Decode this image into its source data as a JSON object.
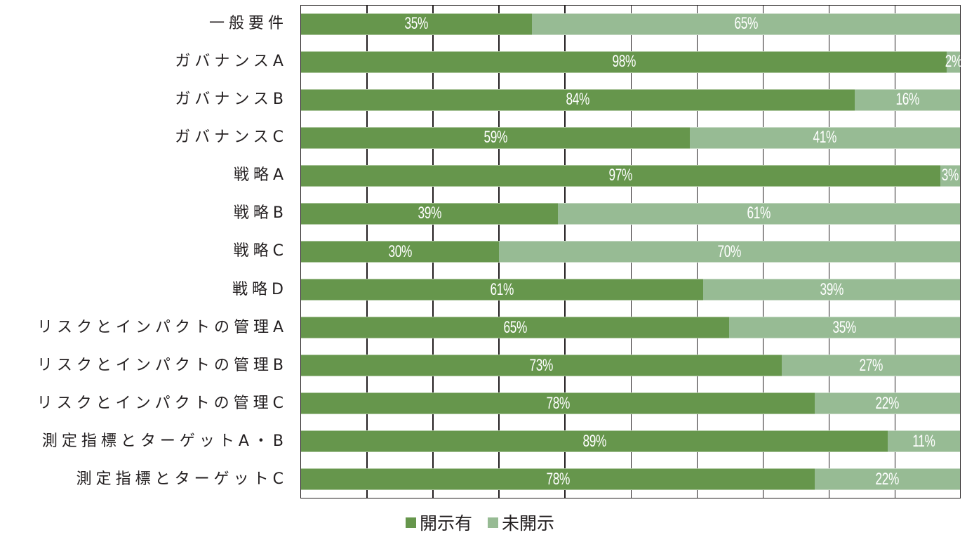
{
  "chart_data": {
    "type": "bar",
    "orientation": "horizontal",
    "stacked": "percent",
    "title": "",
    "xlabel": "",
    "ylabel": "",
    "xlim": [
      0,
      100
    ],
    "grid": {
      "vertical": true,
      "interval": 10
    },
    "legend_position": "bottom",
    "categories": [
      "一般要件",
      "ガバナンスA",
      "ガバナンスB",
      "ガバナンスC",
      "戦略A",
      "戦略B",
      "戦略C",
      "戦略D",
      "リスクとインパクトの管理A",
      "リスクとインパクトの管理B",
      "リスクとインパクトの管理C",
      "測定指標とターゲットA・B",
      "測定指標とターゲットC"
    ],
    "series": [
      {
        "name": "開示有",
        "color": "#66964c",
        "values": [
          35,
          98,
          84,
          59,
          97,
          39,
          30,
          61,
          65,
          73,
          78,
          89,
          78
        ],
        "labels": [
          "35%",
          "98%",
          "84%",
          "59%",
          "97%",
          "39%",
          "30%",
          "61%",
          "65%",
          "73%",
          "78%",
          "89%",
          "78%"
        ]
      },
      {
        "name": "未開示",
        "color": "#97bb94",
        "values": [
          65,
          2,
          16,
          41,
          3,
          61,
          70,
          39,
          35,
          27,
          22,
          11,
          22
        ],
        "labels": [
          "65%",
          "2%",
          "16%",
          "41%",
          "3%",
          "61%",
          "70%",
          "39%",
          "35%",
          "27%",
          "22%",
          "11%",
          "22%"
        ]
      }
    ]
  },
  "legend": {
    "items": [
      {
        "label": "開示有",
        "color": "#66964c"
      },
      {
        "label": "未開示",
        "color": "#97bb94"
      }
    ]
  }
}
